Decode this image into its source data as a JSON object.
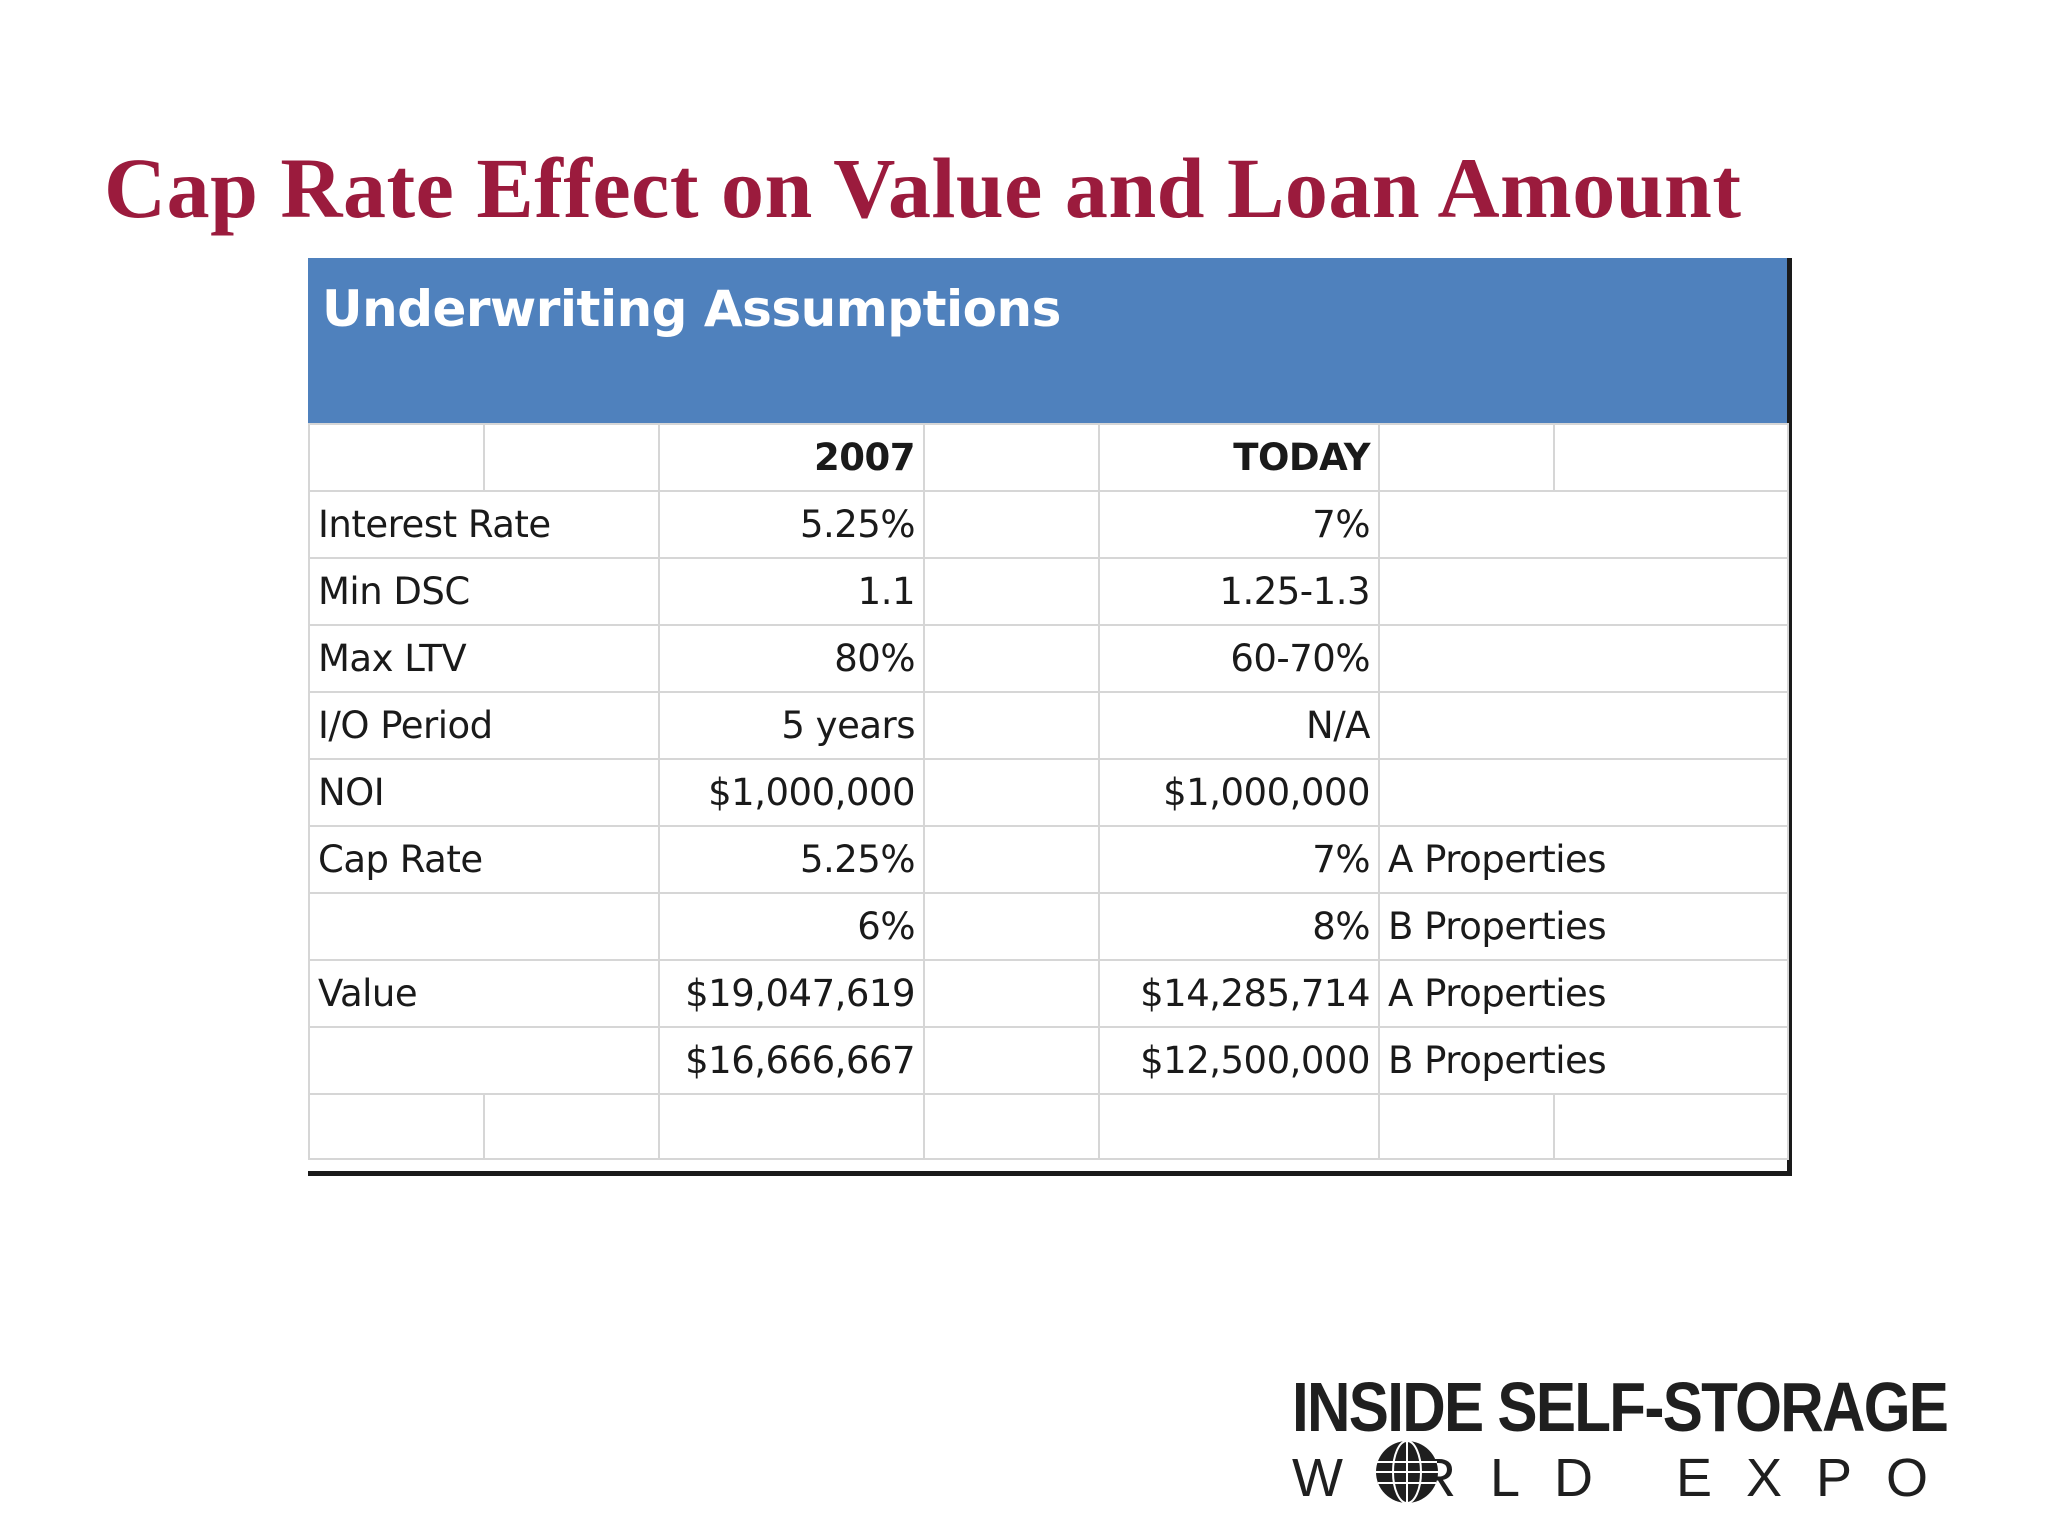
{
  "slide": {
    "title": "Cap Rate Effect on Value and Loan Amount"
  },
  "sheet": {
    "header": "Underwriting Assumptions",
    "columns": [
      "",
      "",
      "2007",
      "",
      "TODAY",
      "",
      ""
    ],
    "rows": [
      {
        "label": "Interest Rate",
        "y2007": "5.25%",
        "today": "7%",
        "note": ""
      },
      {
        "label": "Min DSC",
        "y2007": "1.1",
        "today": "1.25-1.3",
        "note": ""
      },
      {
        "label": "Max LTV",
        "y2007": "80%",
        "today": "60-70%",
        "note": ""
      },
      {
        "label": "I/O Period",
        "y2007": "5 years",
        "today": "N/A",
        "note": ""
      },
      {
        "label": "NOI",
        "y2007": "$1,000,000",
        "today": "$1,000,000",
        "note": ""
      },
      {
        "label": "Cap Rate",
        "y2007": "5.25%",
        "today": "7%",
        "note": "A Properties"
      },
      {
        "label": "",
        "y2007": "6%",
        "today": "8%",
        "note": "B Properties"
      },
      {
        "label": "Value",
        "y2007": "$19,047,619",
        "today": "$14,285,714",
        "note": "A Properties"
      },
      {
        "label": "",
        "y2007": "$16,666,667",
        "today": "$12,500,000",
        "note": "B Properties"
      }
    ],
    "colors": {
      "header_bg": "#4f81bd",
      "grid": "#d6d6d6",
      "title": "#9b1b3d"
    }
  },
  "logo": {
    "line1": "INSIDE SELF-STORAGE",
    "line2_a": "W",
    "line2_b": "RLD EXPO",
    "globe_icon": "globe-icon"
  }
}
